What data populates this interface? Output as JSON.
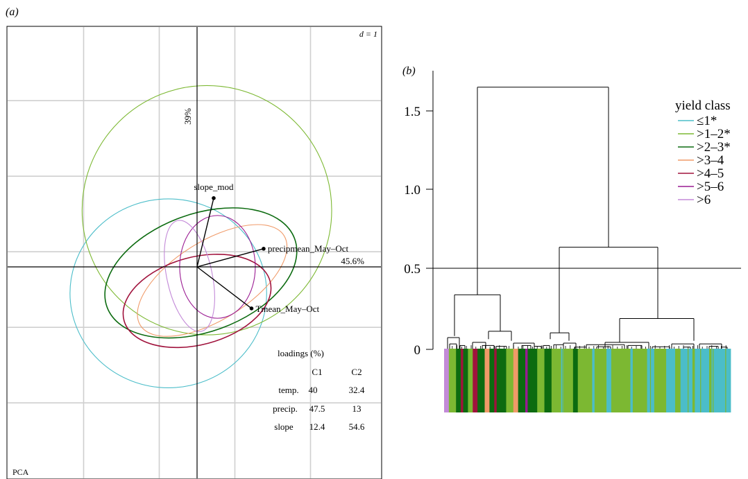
{
  "panel_a": {
    "label": "(a)",
    "scale_label": "d = 1",
    "corner_label": "PCA",
    "pc1_label": "45.6%",
    "pc2_label": "39%",
    "loadings": {
      "title": "loadings (%)",
      "columns": [
        "C1",
        "C2"
      ],
      "rows": [
        {
          "name": "temp.",
          "c1": "40",
          "c2": "32.4"
        },
        {
          "name": "precip.",
          "c1": "47.5",
          "c2": "13"
        },
        {
          "name": "slope",
          "c1": "12.4",
          "c2": "54.6"
        }
      ]
    }
  },
  "panel_b": {
    "label": "(b)",
    "legend_title": "yield class",
    "yaxis_ticks": [
      "0",
      "0.5",
      "1.0",
      "1.5"
    ]
  },
  "chart_data": [
    {
      "type": "scatter",
      "subtype": "pca-biplot",
      "title": "",
      "xlabel": "45.6%",
      "ylabel": "39%",
      "grid": true,
      "grid_step_d": 1,
      "xlim": [
        -2.5,
        2.5
      ],
      "ylim": [
        -2.8,
        3.2
      ],
      "vectors": [
        {
          "name": "slope_mod",
          "x": 0.22,
          "y": 0.91
        },
        {
          "name": "precipmean_May–Oct",
          "x": 0.88,
          "y": 0.24
        },
        {
          "name": "Tmean_May–Oct",
          "x": 0.72,
          "y": -0.55
        }
      ],
      "ellipses": [
        {
          "class": "≤1*",
          "color": "#4bbdc9",
          "cx": -0.38,
          "cy": -0.35,
          "rx": 1.3,
          "ry": 1.25,
          "angle": 0
        },
        {
          "class": ">1–2*",
          "color": "#7cb832",
          "cx": 0.13,
          "cy": 0.75,
          "rx": 1.65,
          "ry": 1.65,
          "angle": 0
        },
        {
          "class": ">2–3*",
          "color": "#0c6b10",
          "cx": 0.05,
          "cy": -0.08,
          "rx": 1.32,
          "ry": 0.78,
          "angle": 20
        },
        {
          "class": ">3–4",
          "color": "#f09a68",
          "cx": 0.2,
          "cy": -0.18,
          "rx": 1.12,
          "ry": 0.52,
          "angle": 32
        },
        {
          "class": ">4–5",
          "color": "#a0123c",
          "cx": 0.0,
          "cy": -0.45,
          "rx": 1.0,
          "ry": 0.58,
          "angle": 15
        },
        {
          "class": ">5–6",
          "color": "#9a1a92",
          "cx": 0.27,
          "cy": 0.0,
          "rx": 0.5,
          "ry": 0.68,
          "angle": 0
        },
        {
          "class": ">6",
          "color": "#c38ad8",
          "cx": -0.1,
          "cy": -0.12,
          "rx": 0.3,
          "ry": 0.75,
          "angle": 12
        }
      ]
    },
    {
      "type": "dendrogram",
      "title": "",
      "ylim": [
        0,
        1.7
      ],
      "yticks": [
        0,
        0.5,
        1.0,
        1.5
      ],
      "cut_height": 0.5,
      "root_height": 1.65,
      "merges": [
        {
          "left": "A",
          "right": "B",
          "height": 1.65
        },
        {
          "left": "B1",
          "right": "B2",
          "height": 0.64
        },
        {
          "left": "A1",
          "right": "A2",
          "height": 0.34
        },
        {
          "left": "B2a",
          "right": "B2b",
          "height": 0.19
        },
        {
          "left": "A2a",
          "right": "A2b",
          "height": 0.11
        },
        {
          "left": "B1a",
          "right": "B1b",
          "height": 0.1
        }
      ],
      "legend": {
        "title": "yield class",
        "entries": [
          {
            "label": "≤1*",
            "color": "#4bbdc9"
          },
          {
            "label": ">1–2*",
            "color": "#7cb832"
          },
          {
            "label": ">2–3*",
            "color": "#0c6b10"
          },
          {
            "label": ">3–4",
            "color": "#f09a68"
          },
          {
            "label": ">4–5",
            "color": "#a0123c"
          },
          {
            "label": ">5–6",
            "color": "#9a1a92"
          },
          {
            "label": ">6",
            "color": "#c38ad8"
          }
        ]
      },
      "leaf_color_bands": [
        {
          "class": ">6",
          "share": 2
        },
        {
          "class": ">1–2*",
          "share": 3
        },
        {
          "class": ">2–3*",
          "share": 2
        },
        {
          "class": ">4–5",
          "share": 1
        },
        {
          "class": ">2–3*",
          "share": 2
        },
        {
          "class": ">1–2*",
          "share": 2
        },
        {
          "class": ">4–5",
          "share": 2
        },
        {
          "class": ">2–3*",
          "share": 3
        },
        {
          "class": ">3–4",
          "share": 2
        },
        {
          "class": ">2–3*",
          "share": 2
        },
        {
          "class": ">4–5",
          "share": 1
        },
        {
          "class": ">2–3*",
          "share": 4
        },
        {
          "class": ">1–2*",
          "share": 3
        },
        {
          "class": ">3–4",
          "share": 2
        },
        {
          "class": ">2–3*",
          "share": 3
        },
        {
          "class": ">5–6",
          "share": 1
        },
        {
          "class": ">2–3*",
          "share": 4
        },
        {
          "class": ">1–2*",
          "share": 3
        },
        {
          "class": ">2–3*",
          "share": 3
        },
        {
          "class": ">1–2*",
          "share": 4
        },
        {
          "class": "≤1*",
          "share": 1
        },
        {
          "class": ">1–2*",
          "share": 4
        },
        {
          "class": ">2–3*",
          "share": 2
        },
        {
          "class": ">1–2*",
          "share": 6
        },
        {
          "class": "≤1*",
          "share": 1
        },
        {
          "class": ">1–2*",
          "share": 5
        },
        {
          "class": "≤1*",
          "share": 2
        },
        {
          "class": ">1–2*",
          "share": 8
        },
        {
          "class": "≤1*",
          "share": 1
        },
        {
          "class": ">1–2*",
          "share": 6
        },
        {
          "class": "≤1*",
          "share": 3
        },
        {
          "class": ">1–2*",
          "share": 5
        },
        {
          "class": "≤1*",
          "share": 4
        },
        {
          "class": ">1–2*",
          "share": 2
        },
        {
          "class": "≤1*",
          "share": 5
        },
        {
          "class": ">1–2*",
          "share": 1
        },
        {
          "class": "≤1*",
          "share": 6
        },
        {
          "class": ">1–2*",
          "share": 1
        },
        {
          "class": "≤1*",
          "share": 8
        }
      ]
    }
  ]
}
